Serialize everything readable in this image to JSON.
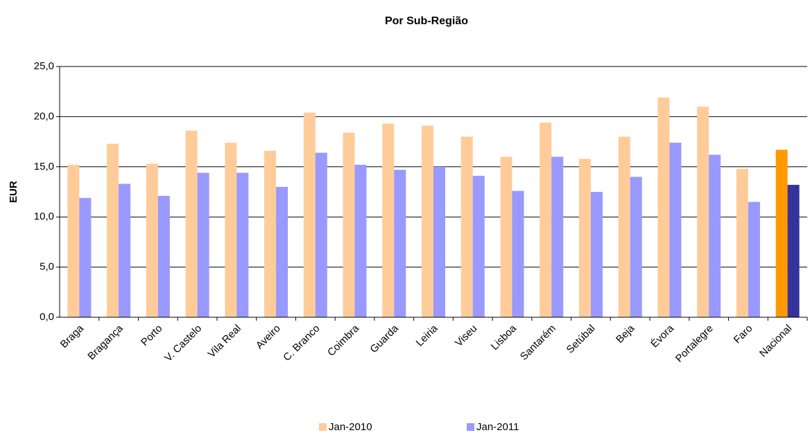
{
  "chart_data": {
    "type": "bar",
    "title": "Por Sub-Região",
    "y_label": "EUR",
    "categories": [
      "Braga",
      "Bragança",
      "Porto",
      "V. Castelo",
      "Vila Real",
      "Aveiro",
      "C. Branco",
      "Coimbra",
      "Guarda",
      "Leiria",
      "Viseu",
      "Lisboa",
      "Santarém",
      "Setúbal",
      "Beja",
      "Évora",
      "Portalegre",
      "Faro",
      "Nacional"
    ],
    "series": [
      {
        "name": "Jan-2010",
        "color": "#ffcc99",
        "colors": [
          "#ffcc99",
          "#ffcc99",
          "#ffcc99",
          "#ffcc99",
          "#ffcc99",
          "#ffcc99",
          "#ffcc99",
          "#ffcc99",
          "#ffcc99",
          "#ffcc99",
          "#ffcc99",
          "#ffcc99",
          "#ffcc99",
          "#ffcc99",
          "#ffcc99",
          "#ffcc99",
          "#ffcc99",
          "#ffcc99",
          "#ff9900"
        ],
        "values": [
          15.2,
          17.3,
          15.3,
          18.6,
          17.4,
          16.6,
          20.4,
          18.4,
          19.3,
          19.1,
          18.0,
          16.0,
          19.4,
          15.8,
          18.0,
          21.9,
          21.0,
          14.8,
          16.7
        ]
      },
      {
        "name": "Jan-2011",
        "color": "#9999ff",
        "colors": [
          "#9999ff",
          "#9999ff",
          "#9999ff",
          "#9999ff",
          "#9999ff",
          "#9999ff",
          "#9999ff",
          "#9999ff",
          "#9999ff",
          "#9999ff",
          "#9999ff",
          "#9999ff",
          "#9999ff",
          "#9999ff",
          "#9999ff",
          "#9999ff",
          "#9999ff",
          "#9999ff",
          "#333399"
        ],
        "values": [
          11.9,
          13.3,
          12.1,
          14.4,
          14.4,
          13.0,
          16.4,
          15.2,
          14.7,
          15.0,
          14.1,
          12.6,
          16.0,
          12.5,
          14.0,
          17.4,
          16.2,
          11.5,
          13.2
        ]
      }
    ],
    "ylim": [
      0,
      25
    ],
    "yticks": [
      {
        "value": 0,
        "label": "0,0"
      },
      {
        "value": 5,
        "label": "5,0"
      },
      {
        "value": 10,
        "label": "10,0"
      },
      {
        "value": 15,
        "label": "15,0"
      },
      {
        "value": 20,
        "label": "20,0"
      },
      {
        "value": 25,
        "label": "25,0"
      }
    ],
    "grid": true,
    "legend": "bottom"
  }
}
